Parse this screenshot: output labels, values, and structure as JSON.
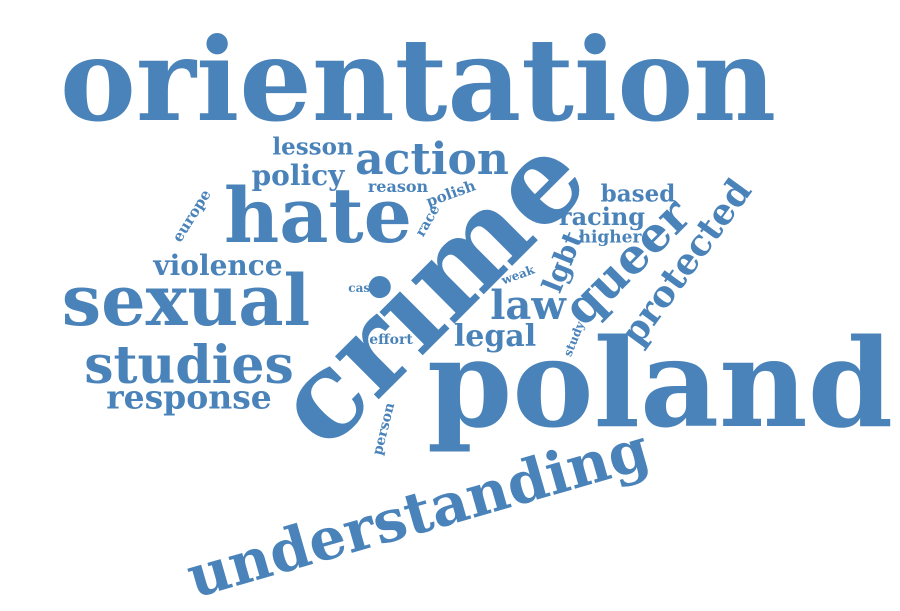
{
  "color": "#4a83b9",
  "words": [
    "orientation",
    "crime",
    "poland",
    "understanding",
    "hate",
    "sexual",
    "studies",
    "action",
    "queer",
    "protected",
    "response",
    "violence",
    "policy",
    "lesson",
    "law",
    "lgbt",
    "legal",
    "based",
    "racing",
    "higher",
    "europe",
    "reason",
    "polish",
    "race",
    "case",
    "weak",
    "effort",
    "study",
    "person"
  ]
}
